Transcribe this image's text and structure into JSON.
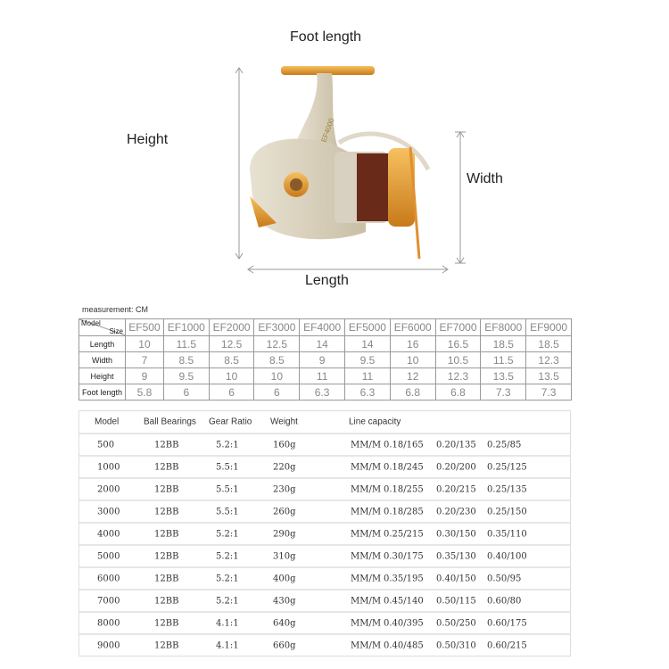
{
  "diagram": {
    "foot_length": "Foot length",
    "height": "Height",
    "width": "Width",
    "length": "Length",
    "reel_marking": "EF4000"
  },
  "size_table": {
    "measurement": "measurement: CM",
    "corner_model": "Model",
    "corner_size": "Size",
    "models": [
      "EF500",
      "EF1000",
      "EF2000",
      "EF3000",
      "EF4000",
      "EF5000",
      "EF6000",
      "EF7000",
      "EF8000",
      "EF9000"
    ],
    "rows": [
      {
        "label": "Length",
        "values": [
          "10",
          "11.5",
          "12.5",
          "12.5",
          "14",
          "14",
          "16",
          "16.5",
          "18.5",
          "18.5"
        ]
      },
      {
        "label": "Width",
        "values": [
          "7",
          "8.5",
          "8.5",
          "8.5",
          "9",
          "9.5",
          "10",
          "10.5",
          "11.5",
          "12.3"
        ]
      },
      {
        "label": "Height",
        "values": [
          "9",
          "9.5",
          "10",
          "10",
          "11",
          "11",
          "12",
          "12.3",
          "13.5",
          "13.5"
        ]
      },
      {
        "label": "Foot length",
        "values": [
          "5.8",
          "6",
          "6",
          "6",
          "6.3",
          "6.3",
          "6.8",
          "6.8",
          "7.3",
          "7.3"
        ]
      }
    ]
  },
  "spec_table": {
    "headers": [
      "Model",
      "Ball Bearings",
      "Gear Ratio",
      "Weight",
      "Line capacity"
    ],
    "rows": [
      [
        "500",
        "12BB",
        "5.2:1",
        "160g",
        "MM/M",
        "0.18/165",
        "0.20/135",
        "0.25/85"
      ],
      [
        "1000",
        "12BB",
        "5.5:1",
        "220g",
        "MM/M",
        "0.18/245",
        "0.20/200",
        "0.25/125"
      ],
      [
        "2000",
        "12BB",
        "5.5:1",
        "230g",
        "MM/M",
        "0.18/255",
        "0.20/215",
        "0.25/135"
      ],
      [
        "3000",
        "12BB",
        "5.5:1",
        "260g",
        "MM/M",
        "0.18/285",
        "0.20/230",
        "0.25/150"
      ],
      [
        "4000",
        "12BB",
        "5.2:1",
        "290g",
        "MM/M",
        "0.25/215",
        "0.30/150",
        "0.35/110"
      ],
      [
        "5000",
        "12BB",
        "5.2:1",
        "310g",
        "MM/M",
        "0.30/175",
        "0.35/130",
        "0.40/100"
      ],
      [
        "6000",
        "12BB",
        "5.2:1",
        "400g",
        "MM/M",
        "0.35/195",
        "0.40/150",
        "0.50/95"
      ],
      [
        "7000",
        "12BB",
        "5.2:1",
        "430g",
        "MM/M",
        "0.45/140",
        "0.50/115",
        "0.60/80"
      ],
      [
        "8000",
        "12BB",
        "4.1:1",
        "640g",
        "MM/M",
        "0.40/395",
        "0.50/250",
        "0.60/175"
      ],
      [
        "9000",
        "12BB",
        "4.1:1",
        "660g",
        "MM/M",
        "0.40/485",
        "0.50/310",
        "0.60/215"
      ]
    ]
  }
}
